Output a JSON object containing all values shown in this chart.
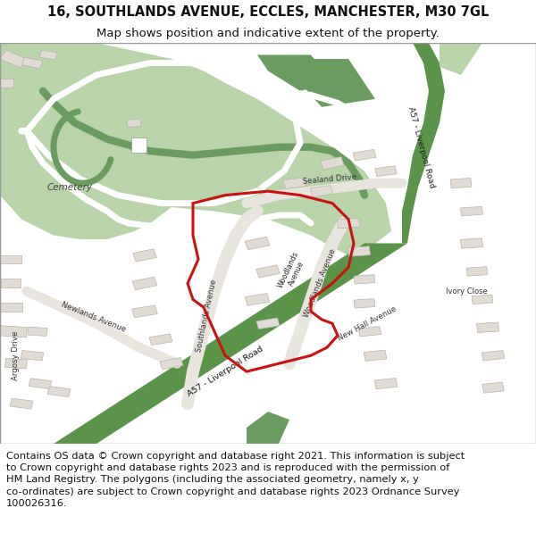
{
  "title_line1": "16, SOUTHLANDS AVENUE, ECCLES, MANCHESTER, M30 7GL",
  "title_line2": "Map shows position and indicative extent of the property.",
  "footer_text": "Contains OS data © Crown copyright and database right 2021. This information is subject\nto Crown copyright and database rights 2023 and is reproduced with the permission of\nHM Land Registry. The polygons (including the associated geometry, namely x, y\nco-ordinates) are subject to Crown copyright and database rights 2023 Ordnance Survey\n100026316.",
  "title_fontsize": 10.5,
  "subtitle_fontsize": 9.5,
  "footer_fontsize": 8.2,
  "bg_color": "#f0ede8",
  "green_light": "#b8d4a8",
  "green_mid": "#8cb87c",
  "green_dark": "#6a9c60",
  "road_white": "#ffffff",
  "road_gray": "#e0dcd6",
  "building_fill": "#e0dbd4",
  "building_edge": "#b8b4ae",
  "red_color": "#cc1111",
  "white_bg": "#ffffff",
  "text_dark": "#333333",
  "green_strip": "#5a9448"
}
